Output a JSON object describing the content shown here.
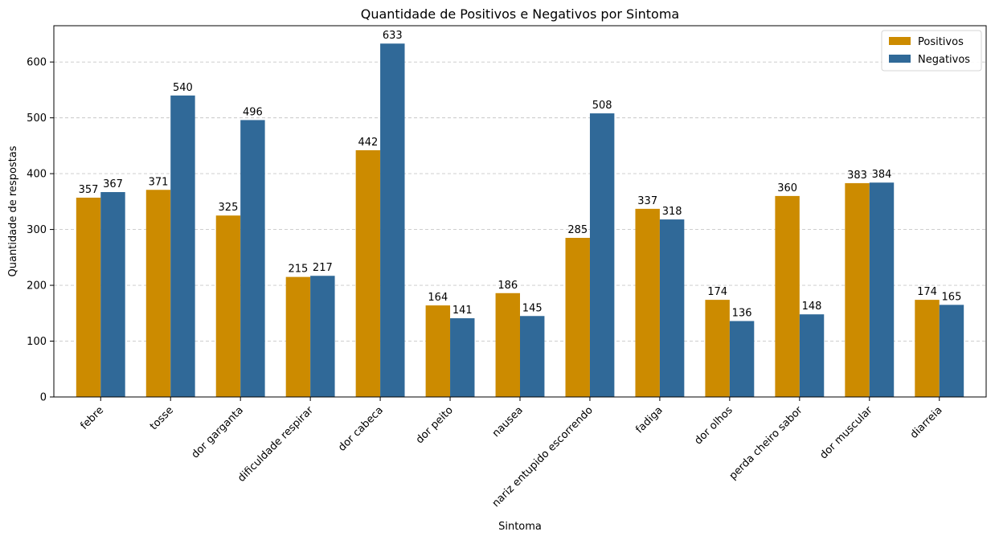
{
  "chart_data": {
    "type": "bar",
    "title": "Quantidade de Positivos e Negativos por Sintoma",
    "xlabel": "Sintoma",
    "ylabel": "Quantidade de respostas",
    "ylim": [
      0,
      665
    ],
    "yticks": [
      0,
      100,
      200,
      300,
      400,
      500,
      600
    ],
    "grid": "y-dashed",
    "legend_position": "top-right",
    "categories": [
      "febre",
      "tosse",
      "dor garganta",
      "dificuldade respirar",
      "dor cabeca",
      "dor peito",
      "nausea",
      "nariz entupido escorrendo",
      "fadiga",
      "dor olhos",
      "perda cheiro sabor",
      "dor muscular",
      "diarreia"
    ],
    "series": [
      {
        "name": "Positivos",
        "color": "#CC8B00",
        "values": [
          357,
          371,
          325,
          215,
          442,
          164,
          186,
          285,
          337,
          174,
          360,
          383,
          174
        ]
      },
      {
        "name": "Negativos",
        "color": "#306998",
        "values": [
          367,
          540,
          496,
          217,
          633,
          141,
          145,
          508,
          318,
          136,
          148,
          384,
          165
        ]
      }
    ]
  }
}
